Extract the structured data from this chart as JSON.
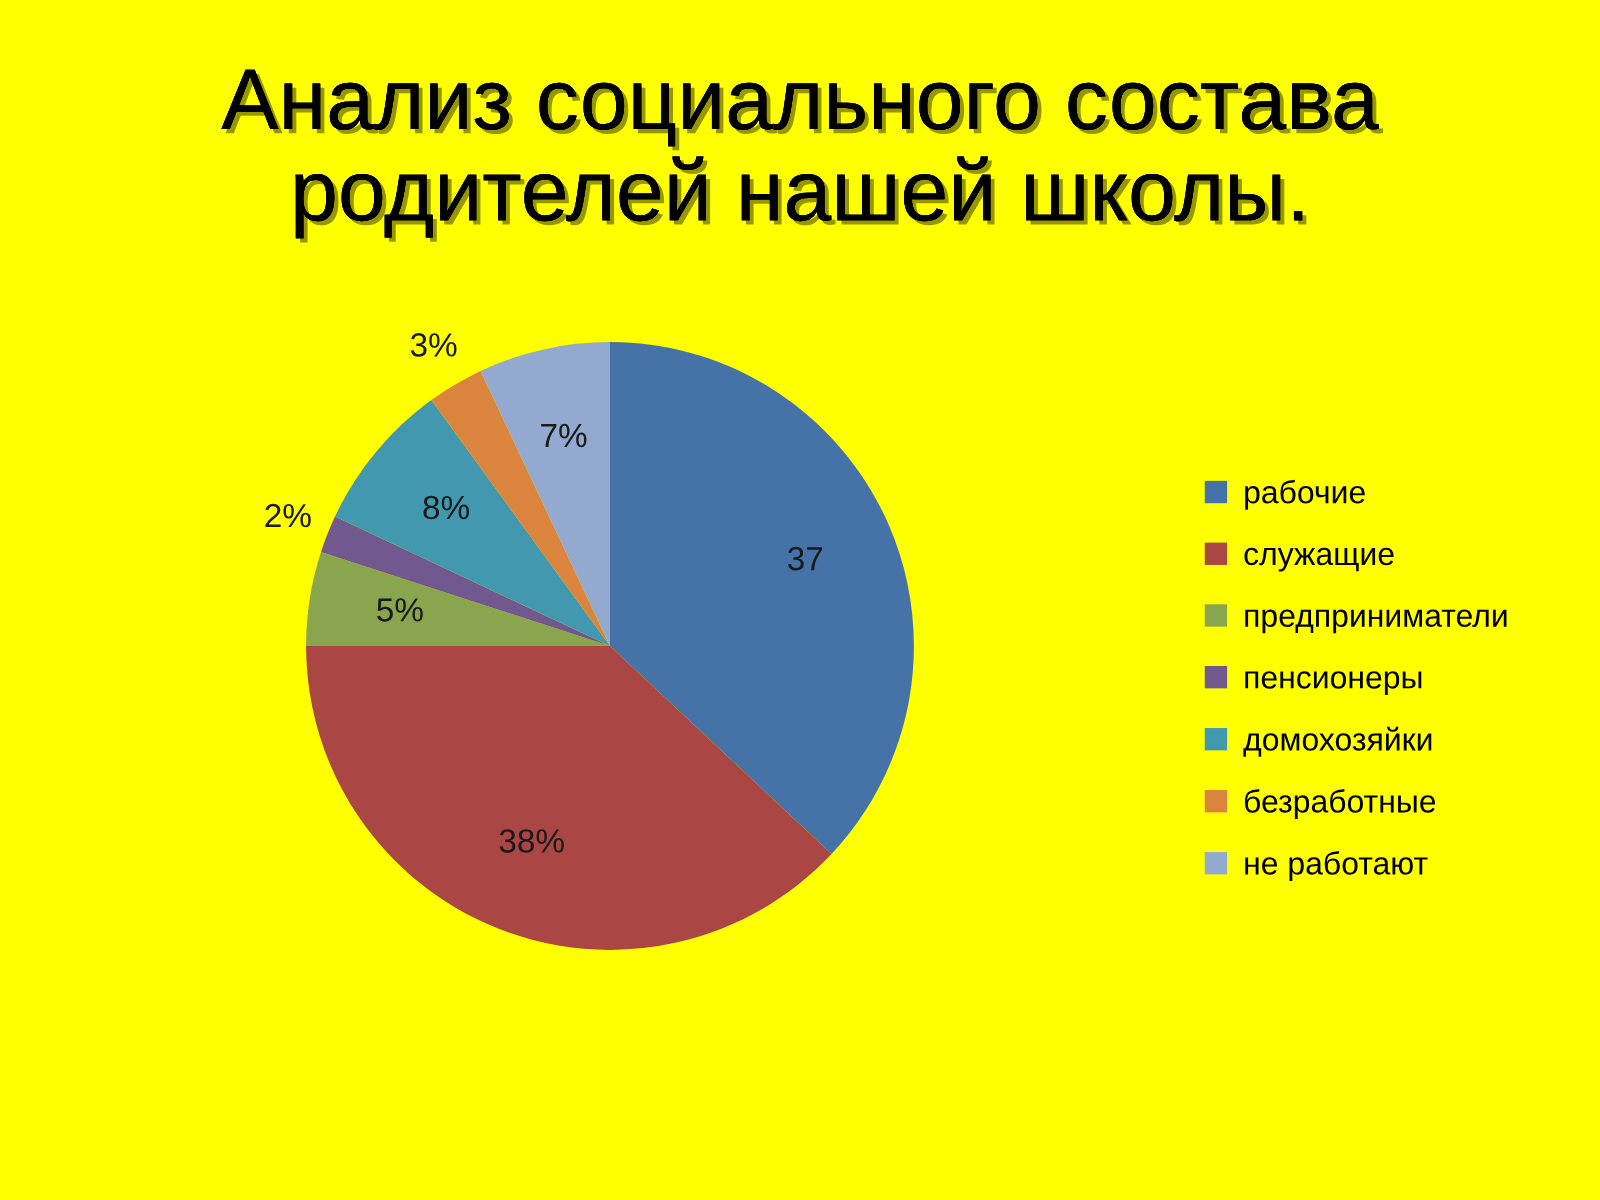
{
  "chart_data": {
    "type": "pie",
    "title": "Анализ социального состава\nродителей нашей школы.",
    "categories": [
      "рабочие",
      "служащие",
      "предприниматели",
      "пенсионеры",
      "домохозяйки",
      "безработные",
      "не работают"
    ],
    "values": [
      37,
      38,
      5,
      2,
      8,
      3,
      7
    ],
    "colors": [
      "#4572a7",
      "#aa4643",
      "#89a54e",
      "#71588f",
      "#4198af",
      "#db843d",
      "#93a9cf"
    ],
    "value_labels": [
      "37",
      "38%",
      "5%",
      "2%",
      "8%",
      "3%",
      "7%"
    ],
    "legend": "right"
  }
}
